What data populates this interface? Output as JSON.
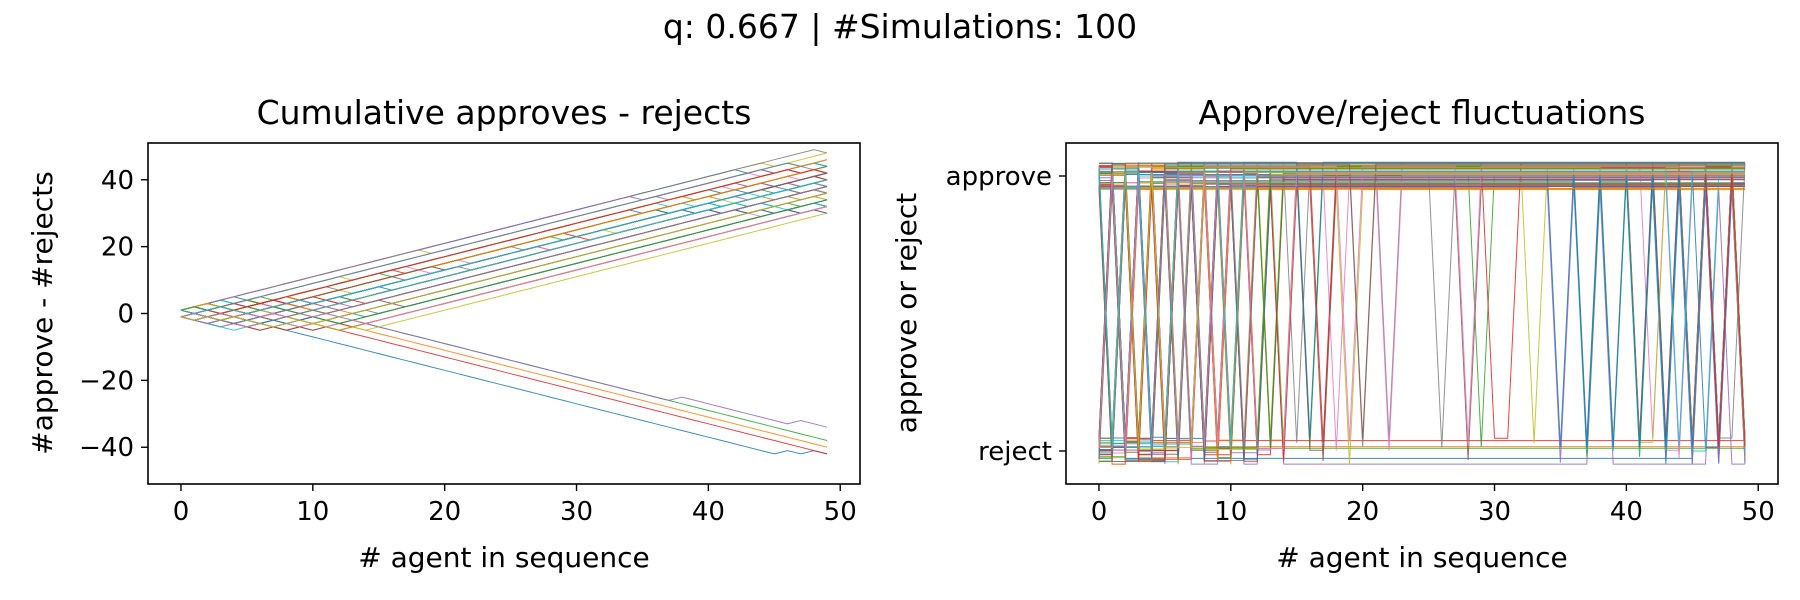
{
  "figure": {
    "suptitle": "q: 0.667  | #Simulations: 100"
  },
  "chart_data": [
    {
      "type": "line",
      "title": "Cumulative approves - rejects",
      "xlabel": "# agent in sequence",
      "ylabel": "#approve - #rejects",
      "xlim": [
        -2.5,
        51.5
      ],
      "ylim": [
        -51,
        51
      ],
      "xticks": [
        0,
        10,
        20,
        30,
        40,
        50
      ],
      "yticks": [
        -40,
        -20,
        0,
        20,
        40
      ],
      "x_range": [
        0,
        49
      ],
      "grid": false,
      "legend": "none",
      "series_count": 100,
      "series_summary": {
        "upward_lines_count": 95,
        "upward_final_values_at_x49": [
          49,
          49,
          47,
          47,
          47,
          45,
          45,
          45,
          45,
          45,
          43,
          43,
          43,
          43,
          43,
          43,
          41,
          41,
          41,
          41,
          39,
          39,
          37,
          37,
          35,
          33,
          31
        ],
        "downward_lines_count": 5,
        "downward_final_values_at_x49": [
          -41,
          -41,
          -41,
          -43,
          -35
        ],
        "downward_breakaway_x": [
          8,
          8,
          8,
          10,
          14
        ]
      }
    },
    {
      "type": "line",
      "title": "Approve/reject fluctuations",
      "xlabel": "# agent in sequence",
      "ylabel": "approve or reject",
      "xlim": [
        -2.5,
        51.5
      ],
      "ylim": [
        -0.12,
        1.12
      ],
      "xticks": [
        0,
        10,
        20,
        30,
        40,
        50
      ],
      "ytick_labels": [
        "reject",
        "approve"
      ],
      "ytick_values": [
        0,
        1
      ],
      "grid": false,
      "legend": "none",
      "series_count": 100,
      "series_summary": {
        "jitter_note": "each series offset slightly around 0 (reject) or 1 (approve)",
        "latest_switch_x": 17,
        "final_reject_count": 5
      }
    }
  ]
}
